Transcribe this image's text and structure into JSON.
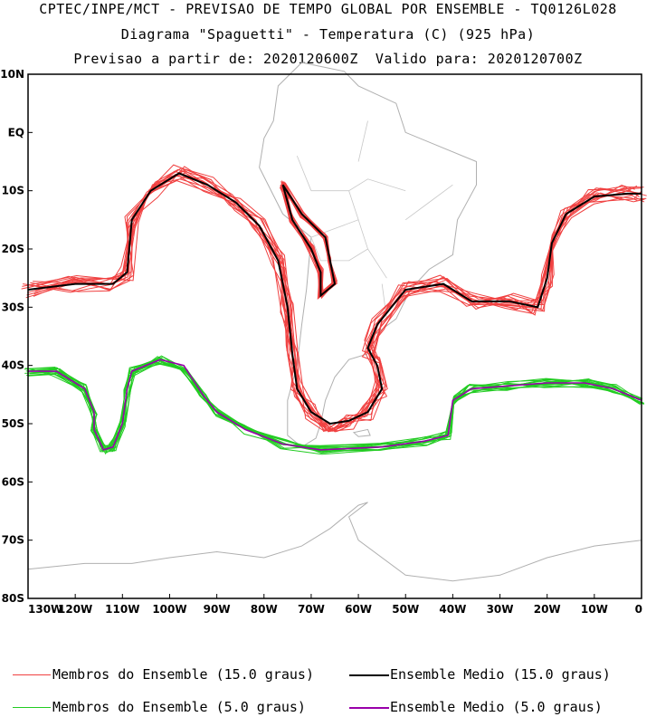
{
  "header": {
    "line1": "CPTEC/INPE/MCT - PREVISAO DE TEMPO GLOBAL POR ENSEMBLE - TQ0126L028",
    "line2": "Diagrama \"Spaguetti\" - Temperatura (C) (925 hPa)",
    "line3": "Previsao a partir de: 2020120600Z  Valido para: 2020120700Z"
  },
  "axes": {
    "lat_labels": [
      "10N",
      "EQ",
      "10S",
      "20S",
      "30S",
      "40S",
      "50S",
      "60S",
      "70S",
      "80S"
    ],
    "lon_labels": [
      "130W",
      "120W",
      "110W",
      "100W",
      "90W",
      "80W",
      "70W",
      "60W",
      "50W",
      "40W",
      "30W",
      "20W",
      "10W",
      "0"
    ]
  },
  "legend": {
    "members_15": "Membros do Ensemble (15.0 graus)",
    "mean_15": "Ensemble Medio (15.0 graus)",
    "members_5": "Membros do Ensemble (5.0 graus)",
    "mean_5": "Ensemble Medio (5.0 graus)"
  },
  "colors": {
    "members_15": "#f04040",
    "mean_15": "#000000",
    "members_5": "#22cc22",
    "mean_5": "#9900aa",
    "coast": "#b0b0b0"
  },
  "map_extent": {
    "lon": [
      -130,
      0
    ],
    "lat": [
      -80,
      10
    ]
  },
  "contours": {
    "isotherm_15_mean": [
      [
        -130,
        -27
      ],
      [
        -120,
        -26
      ],
      [
        -112,
        -26
      ],
      [
        -109,
        -24
      ],
      [
        -108,
        -15
      ],
      [
        -104,
        -10
      ],
      [
        -98,
        -7
      ],
      [
        -92,
        -9
      ],
      [
        -86,
        -12
      ],
      [
        -81,
        -16
      ],
      [
        -77,
        -22
      ],
      [
        -75,
        -30
      ],
      [
        -74,
        -38
      ],
      [
        -73,
        -44
      ],
      [
        -70,
        -48
      ],
      [
        -66,
        -50
      ],
      [
        -62,
        -49.5
      ],
      [
        -58,
        -48
      ],
      [
        -55,
        -44
      ],
      [
        -56,
        -40
      ],
      [
        -58,
        -37
      ],
      [
        -56,
        -33
      ],
      [
        -50,
        -27
      ],
      [
        -42,
        -26
      ],
      [
        -36,
        -29
      ],
      [
        -28,
        -29
      ],
      [
        -22,
        -30
      ],
      [
        -20,
        -25
      ],
      [
        -19,
        -19
      ],
      [
        -16,
        -14
      ],
      [
        -10,
        -11
      ],
      [
        -3,
        -10.5
      ],
      [
        0,
        -10.5
      ]
    ],
    "isotherm_15_island": [
      [
        -76,
        -9
      ],
      [
        -72,
        -14
      ],
      [
        -67,
        -18
      ],
      [
        -66,
        -22
      ],
      [
        -65,
        -26
      ],
      [
        -68,
        -28
      ],
      [
        -68,
        -24
      ],
      [
        -70,
        -20
      ],
      [
        -74,
        -15
      ],
      [
        -76,
        -9
      ]
    ],
    "isotherm_5_mean": [
      [
        -130,
        -41
      ],
      [
        -124,
        -41
      ],
      [
        -118,
        -44
      ],
      [
        -116,
        -48
      ],
      [
        -116,
        -51
      ],
      [
        -114,
        -54.5
      ],
      [
        -112,
        -54
      ],
      [
        -110,
        -50
      ],
      [
        -109,
        -44
      ],
      [
        -108,
        -41
      ],
      [
        -102,
        -39
      ],
      [
        -97,
        -40
      ],
      [
        -93,
        -45
      ],
      [
        -90,
        -48
      ],
      [
        -84,
        -51
      ],
      [
        -76,
        -53.5
      ],
      [
        -68,
        -54.5
      ],
      [
        -55,
        -54
      ],
      [
        -46,
        -53
      ],
      [
        -41,
        -52
      ],
      [
        -40,
        -46
      ],
      [
        -36,
        -44
      ],
      [
        -28,
        -43.5
      ],
      [
        -20,
        -43
      ],
      [
        -12,
        -43
      ],
      [
        -6,
        -44
      ],
      [
        0,
        -46
      ]
    ]
  }
}
